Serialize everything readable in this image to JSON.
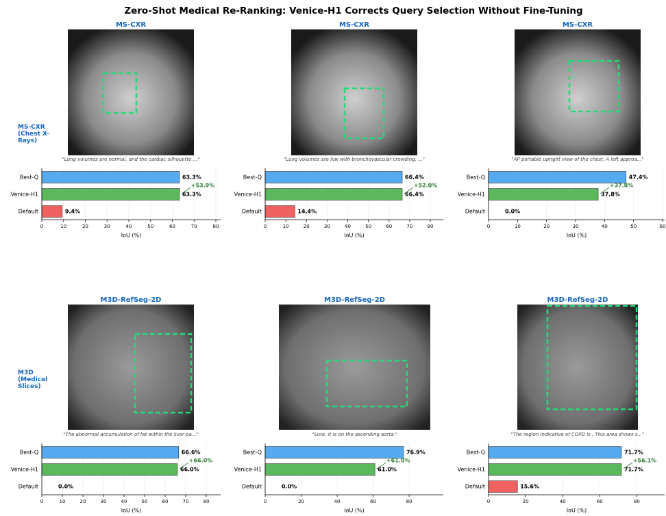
{
  "title": "Zero-Shot Medical Re-Ranking: Venice-H1 Corrects Query Selection Without Fine-Tuning",
  "row_labels": [
    "MS-CXR (Chest X-Rays)",
    "M3D (Medical Slices)"
  ],
  "chart_data": [
    {
      "type": "bar",
      "image_title": "MS-CXR",
      "caption": "\"Lung volumes are normal, and the cardiac silhouette ...\"",
      "categories": [
        "Best-Q",
        "Venice-H1",
        "Default"
      ],
      "values": [
        63.3,
        63.3,
        9.4
      ],
      "value_labels": [
        "63.3%",
        "63.3%",
        "9.4%"
      ],
      "colors": [
        "#56aaf0",
        "#5cb85c",
        "#f06262"
      ],
      "annotation": "+53.9%",
      "xlabel": "IoU (%)",
      "xlim": [
        0,
        82.2
      ],
      "xticks": [
        0,
        10,
        20,
        30,
        40,
        50,
        60,
        70,
        80
      ],
      "grid": true
    },
    {
      "type": "bar",
      "image_title": "MS-CXR",
      "caption": "\"Lung volumes are low with bronchovascular crowding. ...\"",
      "categories": [
        "Best-Q",
        "Venice-H1",
        "Default"
      ],
      "values": [
        66.4,
        66.4,
        14.4
      ],
      "value_labels": [
        "66.4%",
        "66.4%",
        "14.4%"
      ],
      "colors": [
        "#56aaf0",
        "#5cb85c",
        "#f06262"
      ],
      "annotation": "+52.0%",
      "xlabel": "IoU (%)",
      "xlim": [
        0,
        86.3
      ],
      "xticks": [
        0,
        10,
        20,
        30,
        40,
        50,
        60,
        70,
        80
      ],
      "grid": true
    },
    {
      "type": "bar",
      "image_title": "MS-CXR",
      "caption": "\"AP portable upright view of the chest. A left approa...\"",
      "categories": [
        "Best-Q",
        "Venice-H1",
        "Default"
      ],
      "values": [
        47.4,
        37.8,
        0.0
      ],
      "value_labels": [
        "47.4%",
        "37.8%",
        "0.0%"
      ],
      "colors": [
        "#56aaf0",
        "#5cb85c",
        "#f06262"
      ],
      "annotation": "+37.8%",
      "xlabel": "IoU (%)",
      "xlim": [
        0,
        60.7
      ],
      "xticks": [
        0,
        10,
        20,
        30,
        40,
        50,
        60
      ],
      "grid": true
    },
    {
      "type": "bar",
      "image_title": "M3D-RefSeg-2D",
      "caption": "\"The abnormal accumulation of fat within the liver pa...\"",
      "categories": [
        "Best-Q",
        "Venice-H1",
        "Default"
      ],
      "values": [
        66.6,
        66.0,
        0.0
      ],
      "value_labels": [
        "66.6%",
        "66.0%",
        "0.0%"
      ],
      "colors": [
        "#56aaf0",
        "#5cb85c",
        "#f06262"
      ],
      "annotation": "+66.0%",
      "xlabel": "IoU (%)",
      "xlim": [
        0,
        87
      ],
      "xticks": [
        0,
        10,
        20,
        30,
        40,
        50,
        60,
        70,
        80
      ],
      "grid": true
    },
    {
      "type": "bar",
      "image_title": "M3D-RefSeg-2D",
      "caption": "\"Sure, it is on the ascending aorta.\"",
      "categories": [
        "Best-Q",
        "Venice-H1",
        "Default"
      ],
      "values": [
        76.9,
        61.0,
        0.0
      ],
      "value_labels": [
        "76.9%",
        "61.0%",
        "0.0%"
      ],
      "colors": [
        "#56aaf0",
        "#5cb85c",
        "#f06262"
      ],
      "annotation": "+61.0%",
      "xlabel": "IoU (%)",
      "xlim": [
        0,
        99
      ],
      "xticks": [
        0,
        20,
        40,
        60,
        80
      ],
      "grid": true
    },
    {
      "type": "bar",
      "image_title": "M3D-RefSeg-2D",
      "caption": "\"The region indicative of COPD is . This area shows s...\"",
      "categories": [
        "Best-Q",
        "Venice-H1",
        "Default"
      ],
      "values": [
        71.7,
        71.7,
        15.6
      ],
      "value_labels": [
        "71.7%",
        "71.7%",
        "15.6%"
      ],
      "colors": [
        "#56aaf0",
        "#5cb85c",
        "#f06262"
      ],
      "annotation": "+56.1%",
      "xlabel": "IoU (%)",
      "xlim": [
        0,
        95
      ],
      "xticks": [
        0,
        20,
        40,
        60,
        80
      ],
      "grid": true
    }
  ]
}
